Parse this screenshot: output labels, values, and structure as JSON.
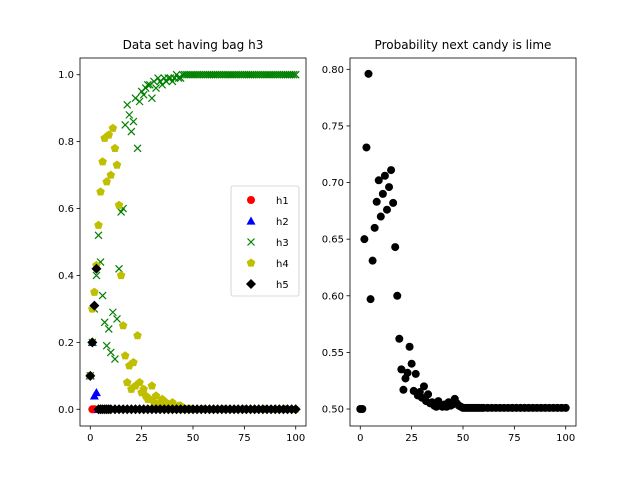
{
  "chart_data": [
    {
      "type": "scatter",
      "title": "Data set having bag h3",
      "xlabel": "",
      "ylabel": "",
      "xlim": [
        -5,
        105
      ],
      "ylim": [
        -0.05,
        1.05
      ],
      "xticks": [
        0,
        25,
        50,
        75,
        100
      ],
      "xtick_labels": [
        "0",
        "25",
        "50",
        "75",
        "100"
      ],
      "yticks": [
        0.0,
        0.2,
        0.4,
        0.6,
        0.8,
        1.0
      ],
      "ytick_labels": [
        "0.0",
        "0.2",
        "0.4",
        "0.6",
        "0.8",
        "1.0"
      ],
      "grid": false,
      "legend_position": "center-right",
      "series": [
        {
          "name": "h1",
          "marker": "circle",
          "color": "#ff0000",
          "x": [
            0,
            1,
            2
          ],
          "y": [
            0.1,
            0.0,
            0.0
          ]
        },
        {
          "name": "h2",
          "marker": "triangle",
          "color": "#0000ff",
          "x": [
            0,
            1,
            2,
            3,
            4,
            5
          ],
          "y": [
            0.1,
            0.2,
            0.04,
            0.05,
            0.0,
            0.0
          ]
        },
        {
          "name": "h3",
          "marker": "x",
          "color": "#008000",
          "x": [
            0,
            1,
            2,
            3,
            4,
            5,
            6,
            7,
            8,
            9,
            10,
            11,
            12,
            13,
            14,
            15,
            16,
            17,
            18,
            19,
            20,
            21,
            22,
            23,
            24,
            25,
            26,
            27,
            28,
            29,
            30,
            31,
            32,
            33,
            34,
            35,
            36,
            37,
            38,
            39,
            40,
            41,
            42,
            43,
            44,
            45,
            46,
            47,
            48,
            49,
            50,
            51,
            52,
            53,
            54,
            55,
            56,
            57,
            58,
            59,
            60,
            61,
            62,
            63,
            64,
            65,
            66,
            67,
            68,
            69,
            70,
            71,
            72,
            73,
            74,
            75,
            76,
            77,
            78,
            79,
            80,
            81,
            82,
            83,
            84,
            85,
            86,
            87,
            88,
            89,
            90,
            91,
            92,
            93,
            94,
            95,
            96,
            97,
            98,
            99,
            100
          ],
          "y": [
            0.1,
            0.2,
            0.3,
            0.4,
            0.52,
            0.44,
            0.34,
            0.26,
            0.19,
            0.24,
            0.17,
            0.29,
            0.15,
            0.27,
            0.42,
            0.59,
            0.6,
            0.85,
            0.91,
            0.88,
            0.83,
            0.86,
            0.93,
            0.78,
            0.92,
            0.95,
            0.94,
            0.96,
            0.97,
            0.97,
            0.93,
            0.98,
            0.96,
            0.99,
            0.98,
            0.97,
            0.99,
            0.98,
            0.99,
            0.99,
            0.98,
            0.99,
            1.0,
            0.99,
            0.99,
            1.0,
            1.0,
            1.0,
            1.0,
            1.0,
            1.0,
            1.0,
            1.0,
            1.0,
            1.0,
            1.0,
            1.0,
            1.0,
            1.0,
            1.0,
            1.0,
            1.0,
            1.0,
            1.0,
            1.0,
            1.0,
            1.0,
            1.0,
            1.0,
            1.0,
            1.0,
            1.0,
            1.0,
            1.0,
            1.0,
            1.0,
            1.0,
            1.0,
            1.0,
            1.0,
            1.0,
            1.0,
            1.0,
            1.0,
            1.0,
            1.0,
            1.0,
            1.0,
            1.0,
            1.0,
            1.0,
            1.0,
            1.0,
            1.0,
            1.0,
            1.0,
            1.0,
            1.0,
            1.0,
            1.0,
            1.0
          ]
        },
        {
          "name": "h4",
          "marker": "pentagon",
          "color": "#bfbf00",
          "x": [
            0,
            1,
            2,
            3,
            4,
            5,
            6,
            7,
            8,
            9,
            10,
            11,
            12,
            13,
            14,
            15,
            16,
            17,
            18,
            19,
            20,
            21,
            22,
            23,
            24,
            25,
            26,
            27,
            28,
            29,
            30,
            31,
            32,
            33,
            34,
            35,
            36,
            37,
            38,
            39,
            40,
            41,
            42,
            43,
            44,
            45,
            46,
            47,
            48,
            49,
            50,
            55,
            60,
            65,
            70,
            75,
            80,
            85,
            90,
            95,
            100
          ],
          "y": [
            0.1,
            0.3,
            0.35,
            0.43,
            0.55,
            0.65,
            0.74,
            0.81,
            0.68,
            0.82,
            0.7,
            0.84,
            0.78,
            0.73,
            0.61,
            0.4,
            0.25,
            0.16,
            0.08,
            0.13,
            0.06,
            0.14,
            0.07,
            0.22,
            0.08,
            0.05,
            0.06,
            0.04,
            0.03,
            0.03,
            0.07,
            0.02,
            0.04,
            0.01,
            0.02,
            0.03,
            0.01,
            0.02,
            0.01,
            0.01,
            0.02,
            0.01,
            0.0,
            0.01,
            0.01,
            0.0,
            0.0,
            0.0,
            0.0,
            0.0,
            0.0,
            0.0,
            0.0,
            0.0,
            0.0,
            0.0,
            0.0,
            0.0,
            0.0,
            0.0,
            0.0
          ]
        },
        {
          "name": "h5",
          "marker": "diamond",
          "color": "#000000",
          "x": [
            0,
            1,
            2,
            3,
            4,
            5,
            6,
            7,
            8,
            9,
            10,
            12,
            14,
            16,
            18,
            20,
            22,
            24,
            26,
            28,
            30,
            32,
            34,
            36,
            38,
            40,
            42,
            44,
            46,
            48,
            50,
            52,
            54,
            56,
            58,
            60,
            62,
            64,
            66,
            68,
            70,
            72,
            74,
            76,
            78,
            80,
            82,
            84,
            86,
            88,
            90,
            92,
            94,
            96,
            98,
            100
          ],
          "y": [
            0.1,
            0.2,
            0.31,
            0.42,
            0.0,
            0.0,
            0.0,
            0.0,
            0.0,
            0.0,
            0.0,
            0.0,
            0.0,
            0.0,
            0.0,
            0.0,
            0.0,
            0.0,
            0.0,
            0.0,
            0.0,
            0.0,
            0.0,
            0.0,
            0.0,
            0.0,
            0.0,
            0.0,
            0.0,
            0.0,
            0.0,
            0.0,
            0.0,
            0.0,
            0.0,
            0.0,
            0.0,
            0.0,
            0.0,
            0.0,
            0.0,
            0.0,
            0.0,
            0.0,
            0.0,
            0.0,
            0.0,
            0.0,
            0.0,
            0.0,
            0.0,
            0.0,
            0.0,
            0.0,
            0.0,
            0.0
          ]
        }
      ]
    },
    {
      "type": "scatter",
      "title": "Probability next candy is lime",
      "xlabel": "",
      "ylabel": "",
      "xlim": [
        -5,
        105
      ],
      "ylim": [
        0.485,
        0.81
      ],
      "xticks": [
        0,
        25,
        50,
        75,
        100
      ],
      "xtick_labels": [
        "0",
        "25",
        "50",
        "75",
        "100"
      ],
      "yticks": [
        0.5,
        0.55,
        0.6,
        0.65,
        0.7,
        0.75,
        0.8
      ],
      "ytick_labels": [
        "0.50",
        "0.55",
        "0.60",
        "0.65",
        "0.70",
        "0.75",
        "0.80"
      ],
      "grid": false,
      "series": [
        {
          "name": "",
          "marker": "circle",
          "color": "#000000",
          "x": [
            0,
            1,
            2,
            3,
            4,
            5,
            6,
            7,
            8,
            9,
            10,
            11,
            12,
            13,
            14,
            15,
            16,
            17,
            18,
            19,
            20,
            21,
            22,
            23,
            24,
            25,
            26,
            27,
            28,
            29,
            30,
            31,
            32,
            33,
            34,
            35,
            36,
            37,
            38,
            39,
            40,
            41,
            42,
            43,
            44,
            45,
            46,
            47,
            48,
            49,
            50,
            51,
            52,
            53,
            54,
            55,
            56,
            57,
            58,
            59,
            60,
            62,
            64,
            66,
            68,
            70,
            72,
            74,
            76,
            78,
            80,
            82,
            84,
            86,
            88,
            90,
            92,
            94,
            96,
            98,
            100
          ],
          "y": [
            0.5,
            0.5,
            0.65,
            0.731,
            0.796,
            0.597,
            0.631,
            0.66,
            0.683,
            0.702,
            0.67,
            0.69,
            0.706,
            0.676,
            0.696,
            0.711,
            0.682,
            0.643,
            0.6,
            0.562,
            0.535,
            0.517,
            0.527,
            0.532,
            0.555,
            0.54,
            0.516,
            0.531,
            0.512,
            0.515,
            0.51,
            0.52,
            0.507,
            0.513,
            0.505,
            0.506,
            0.503,
            0.502,
            0.507,
            0.503,
            0.502,
            0.504,
            0.502,
            0.506,
            0.503,
            0.504,
            0.509,
            0.505,
            0.503,
            0.502,
            0.501,
            0.501,
            0.501,
            0.501,
            0.501,
            0.501,
            0.501,
            0.501,
            0.501,
            0.501,
            0.501,
            0.501,
            0.501,
            0.501,
            0.501,
            0.501,
            0.501,
            0.501,
            0.501,
            0.501,
            0.501,
            0.501,
            0.501,
            0.501,
            0.501,
            0.501,
            0.501,
            0.501,
            0.501,
            0.501,
            0.501
          ]
        }
      ]
    }
  ]
}
